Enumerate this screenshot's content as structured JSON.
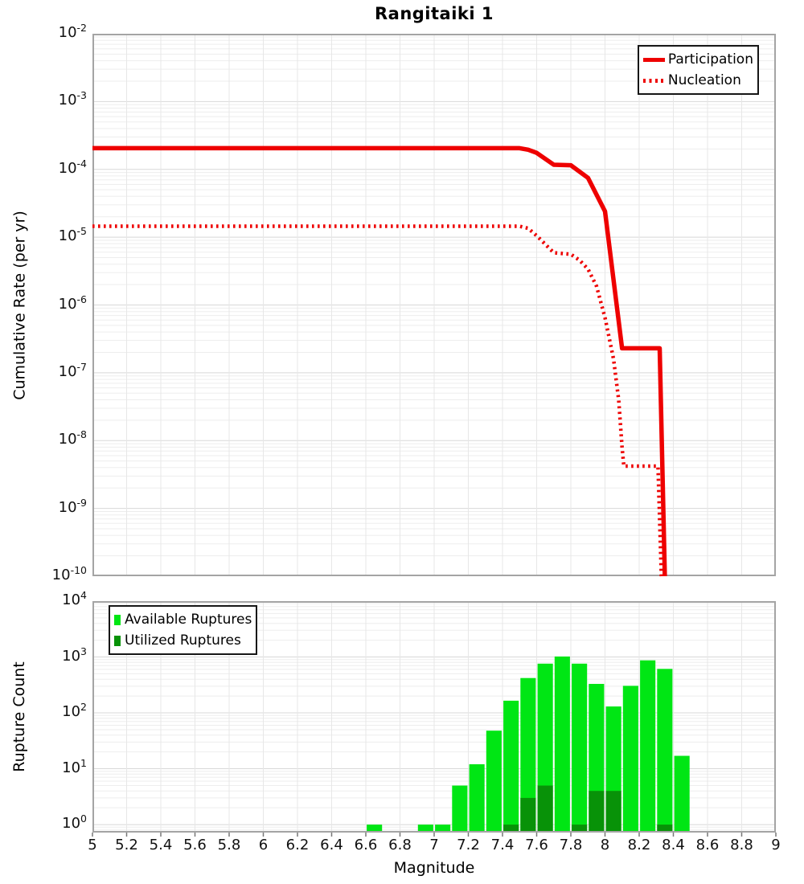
{
  "chart_data": [
    {
      "type": "line",
      "panel": "top",
      "title": "Rangitaiki 1",
      "ylabel": "Cumulative Rate (per yr)",
      "xlim": [
        5,
        9
      ],
      "ylim": [
        1e-10,
        0.01
      ],
      "y_tick_exps": [
        -2,
        -3,
        -4,
        -5,
        -6,
        -7,
        -8,
        -9,
        -10
      ],
      "grid": "on",
      "legend_position": "top-right",
      "series": [
        {
          "name": "Participation",
          "line": "solid",
          "color": "#ee0000",
          "points": [
            [
              5.0,
              0.000205
            ],
            [
              7.5,
              0.000205
            ],
            [
              7.55,
              0.000195
            ],
            [
              7.6,
              0.000175
            ],
            [
              7.7,
              0.000117
            ],
            [
              7.8,
              0.000115
            ],
            [
              7.9,
              7.5e-05
            ],
            [
              8.0,
              2.4e-05
            ],
            [
              8.1,
              2.3e-07
            ],
            [
              8.32,
              2.3e-07
            ],
            [
              8.35,
              1e-10
            ]
          ]
        },
        {
          "name": "Nucleation",
          "line": "dotted",
          "color": "#ee0000",
          "points": [
            [
              5.0,
              1.45e-05
            ],
            [
              7.5,
              1.45e-05
            ],
            [
              7.55,
              1.35e-05
            ],
            [
              7.6,
              1.05e-05
            ],
            [
              7.7,
              5.9e-06
            ],
            [
              7.8,
              5.6e-06
            ],
            [
              7.85,
              4.6e-06
            ],
            [
              7.9,
              3.4e-06
            ],
            [
              7.95,
              1.9e-06
            ],
            [
              8.0,
              6.5e-07
            ],
            [
              8.05,
              1.6e-07
            ],
            [
              8.08,
              4e-08
            ],
            [
              8.1,
              8e-09
            ],
            [
              8.11,
              4.2e-09
            ],
            [
              8.31,
              4.2e-09
            ],
            [
              8.33,
              1e-10
            ]
          ]
        }
      ]
    },
    {
      "type": "bar",
      "panel": "bottom",
      "ylabel": "Rupture Count",
      "xlabel": "Magnitude",
      "xlim": [
        5,
        9
      ],
      "ylim": [
        1,
        10000.0
      ],
      "y_tick_exps": [
        4,
        3,
        2,
        1,
        0
      ],
      "x_ticks": [
        [
          5,
          "5"
        ],
        [
          5.2,
          "5.2"
        ],
        [
          5.4,
          "5.4"
        ],
        [
          5.6,
          "5.6"
        ],
        [
          5.8,
          "5.8"
        ],
        [
          6,
          "6"
        ],
        [
          6.2,
          "6.2"
        ],
        [
          6.4,
          "6.4"
        ],
        [
          6.6,
          "6.6"
        ],
        [
          6.8,
          "6.8"
        ],
        [
          7,
          "7"
        ],
        [
          7.2,
          "7.2"
        ],
        [
          7.4,
          "7.4"
        ],
        [
          7.6,
          "7.6"
        ],
        [
          7.8,
          "7.8"
        ],
        [
          8,
          "8"
        ],
        [
          8.2,
          "8.2"
        ],
        [
          8.4,
          "8.4"
        ],
        [
          8.6,
          "8.6"
        ],
        [
          8.8,
          "8.8"
        ],
        [
          9,
          "9"
        ]
      ],
      "bin_width": 0.1,
      "grid": "on",
      "legend_position": "top-left",
      "series": [
        {
          "name": "Available Ruptures",
          "color": "#00e614",
          "bins": [
            [
              6.65,
              1
            ],
            [
              6.95,
              1
            ],
            [
              7.05,
              1
            ],
            [
              7.15,
              5
            ],
            [
              7.25,
              12
            ],
            [
              7.35,
              48
            ],
            [
              7.45,
              165
            ],
            [
              7.55,
              420
            ],
            [
              7.65,
              760
            ],
            [
              7.75,
              1020
            ],
            [
              7.85,
              760
            ],
            [
              7.95,
              330
            ],
            [
              8.05,
              130
            ],
            [
              8.15,
              305
            ],
            [
              8.25,
              870
            ],
            [
              8.35,
              612
            ],
            [
              8.45,
              17
            ]
          ]
        },
        {
          "name": "Utilized Ruptures",
          "color": "#089208",
          "bins": [
            [
              7.45,
              1
            ],
            [
              7.55,
              3
            ],
            [
              7.65,
              5
            ],
            [
              7.85,
              1
            ],
            [
              7.95,
              4
            ],
            [
              8.05,
              4
            ],
            [
              8.35,
              1
            ]
          ]
        }
      ]
    }
  ]
}
